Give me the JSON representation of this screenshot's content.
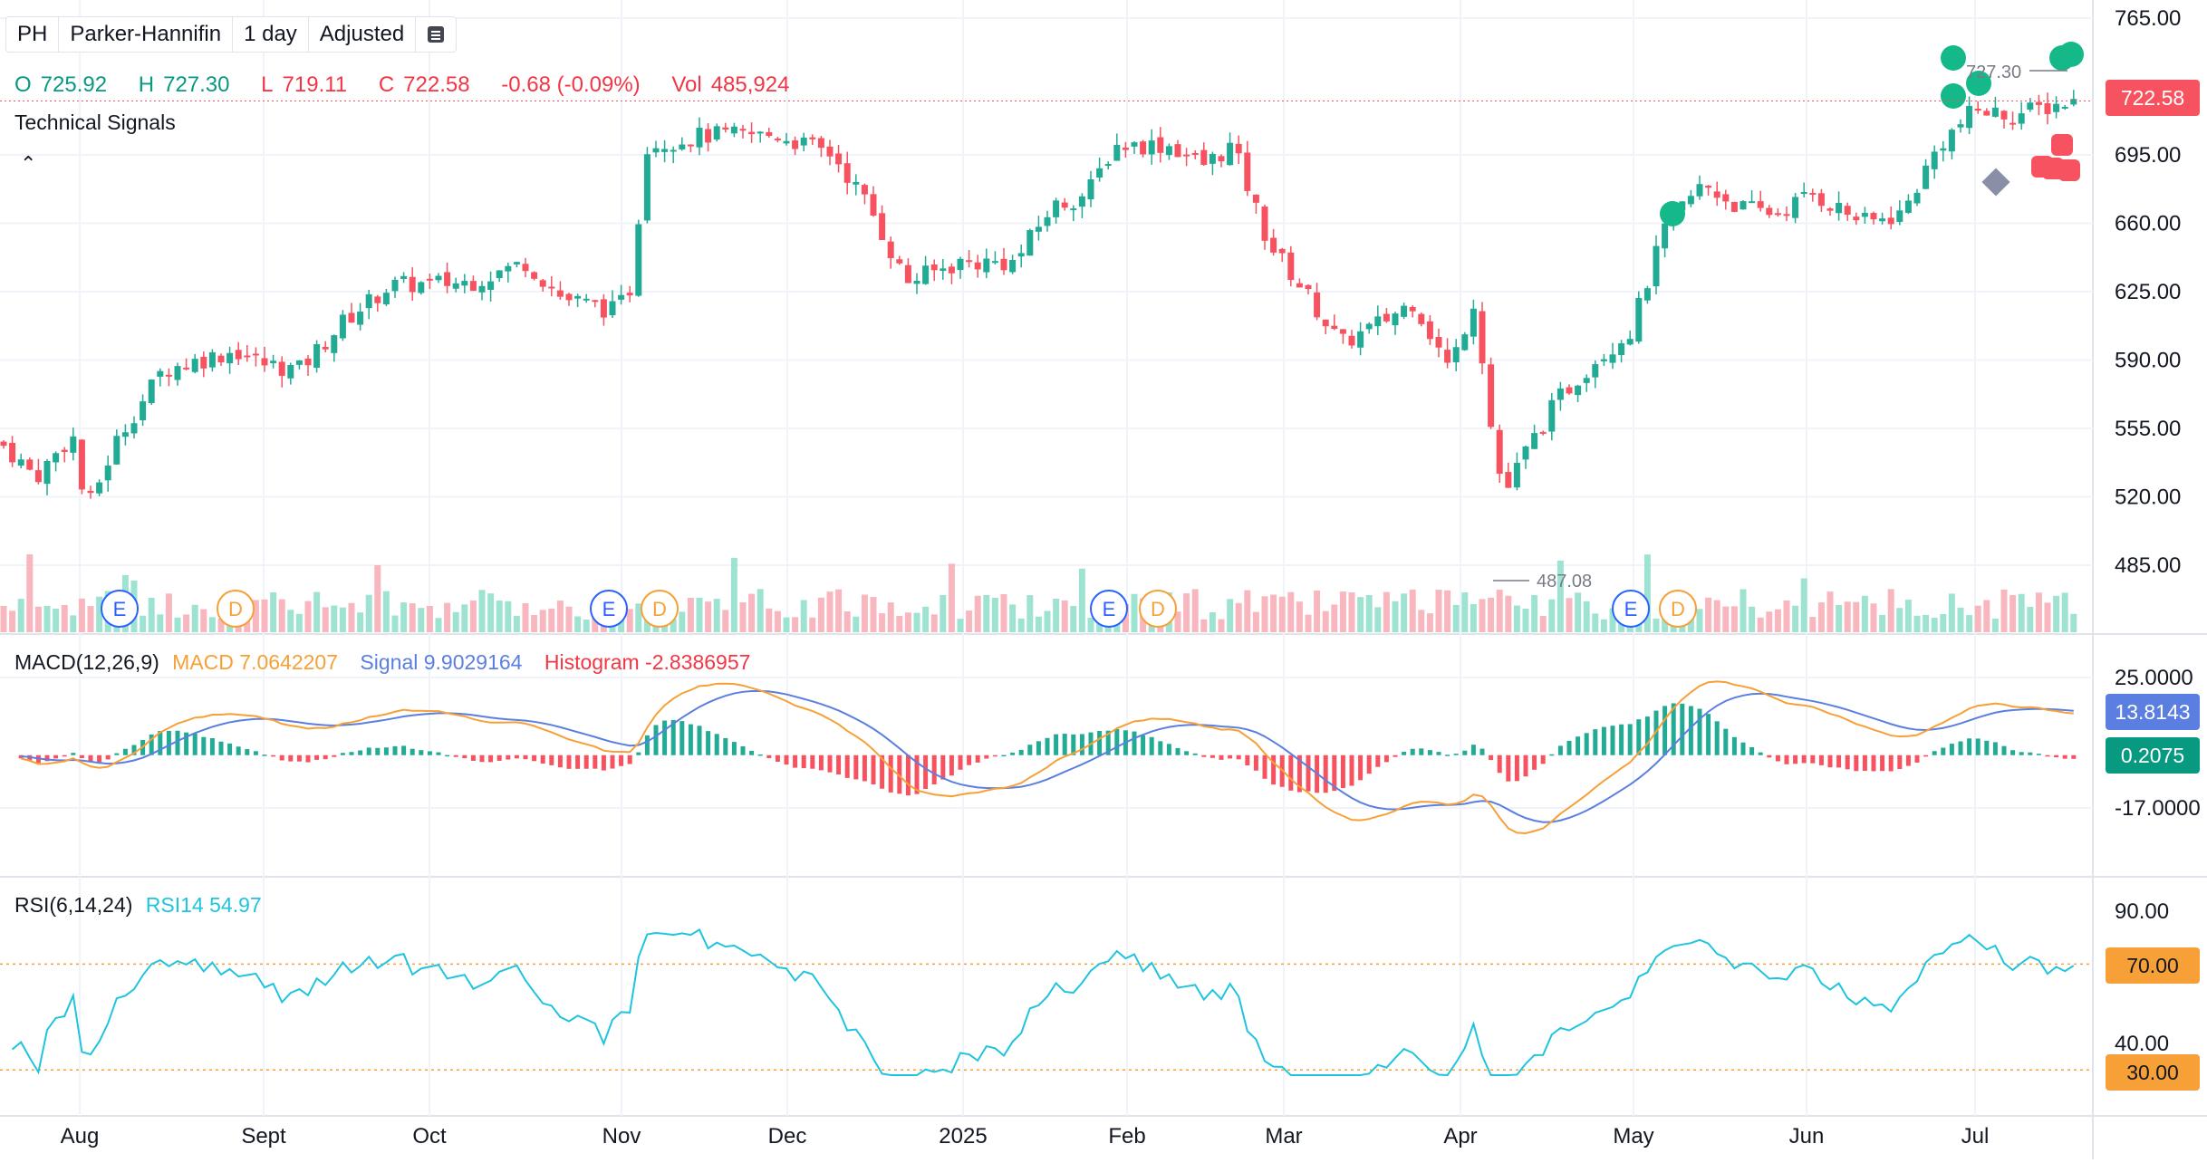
{
  "toolbar": {
    "symbol": "PH",
    "company": "Parker-Hannifin",
    "interval": "1 day",
    "adjustment": "Adjusted",
    "menu_icon": "list-icon"
  },
  "ohlc": {
    "open_label": "O",
    "open": "725.92",
    "high_label": "H",
    "high": "727.30",
    "low_label": "L",
    "low": "719.11",
    "close_label": "C",
    "close": "722.58",
    "change": "-0.68 (-0.09%)",
    "vol_label": "Vol",
    "volume": "485,924"
  },
  "signals_label": "Technical Signals",
  "collapse_icon": "chevron-up-icon",
  "price_axis": {
    "labels": [
      "765.00",
      "695.00",
      "660.00",
      "625.00",
      "590.00",
      "555.00",
      "520.00",
      "485.00"
    ],
    "current_price": "722.58",
    "high_marker": "727.30",
    "low_marker": "487.08"
  },
  "time_axis": [
    "Aug",
    "Sept",
    "Oct",
    "Nov",
    "Dec",
    "2025",
    "Feb",
    "Mar",
    "Apr",
    "May",
    "Jun",
    "Jul"
  ],
  "events": [
    {
      "letter": "E",
      "kind": "earnings"
    },
    {
      "letter": "D",
      "kind": "dividend"
    },
    {
      "letter": "E",
      "kind": "earnings"
    },
    {
      "letter": "D",
      "kind": "dividend"
    },
    {
      "letter": "E",
      "kind": "earnings"
    },
    {
      "letter": "D",
      "kind": "dividend"
    },
    {
      "letter": "E",
      "kind": "earnings"
    },
    {
      "letter": "D",
      "kind": "dividend"
    }
  ],
  "macd": {
    "title": "MACD(12,26,9)",
    "macd_label": "MACD 7.0642207",
    "signal_label": "Signal 9.9029164",
    "hist_label": "Histogram -2.8386957",
    "axis_labels": [
      "25.0000",
      "-17.0000"
    ],
    "signal_tag": "13.8143",
    "hist_tag": "0.2075"
  },
  "rsi": {
    "title": "RSI(6,14,24)",
    "rsi_label": "RSI14 54.97",
    "axis_labels": [
      "90.00",
      "40.00"
    ],
    "upper_tag": "70.00",
    "lower_tag": "30.00"
  },
  "colors": {
    "up": "#22ab94",
    "down": "#f7525f",
    "macd": "#f6a037",
    "signal": "#5b7fe0",
    "rsi": "#1fc4de",
    "grid": "#f0f3fa",
    "earnings": "#2962ff",
    "dividend": "#f6a037"
  }
}
